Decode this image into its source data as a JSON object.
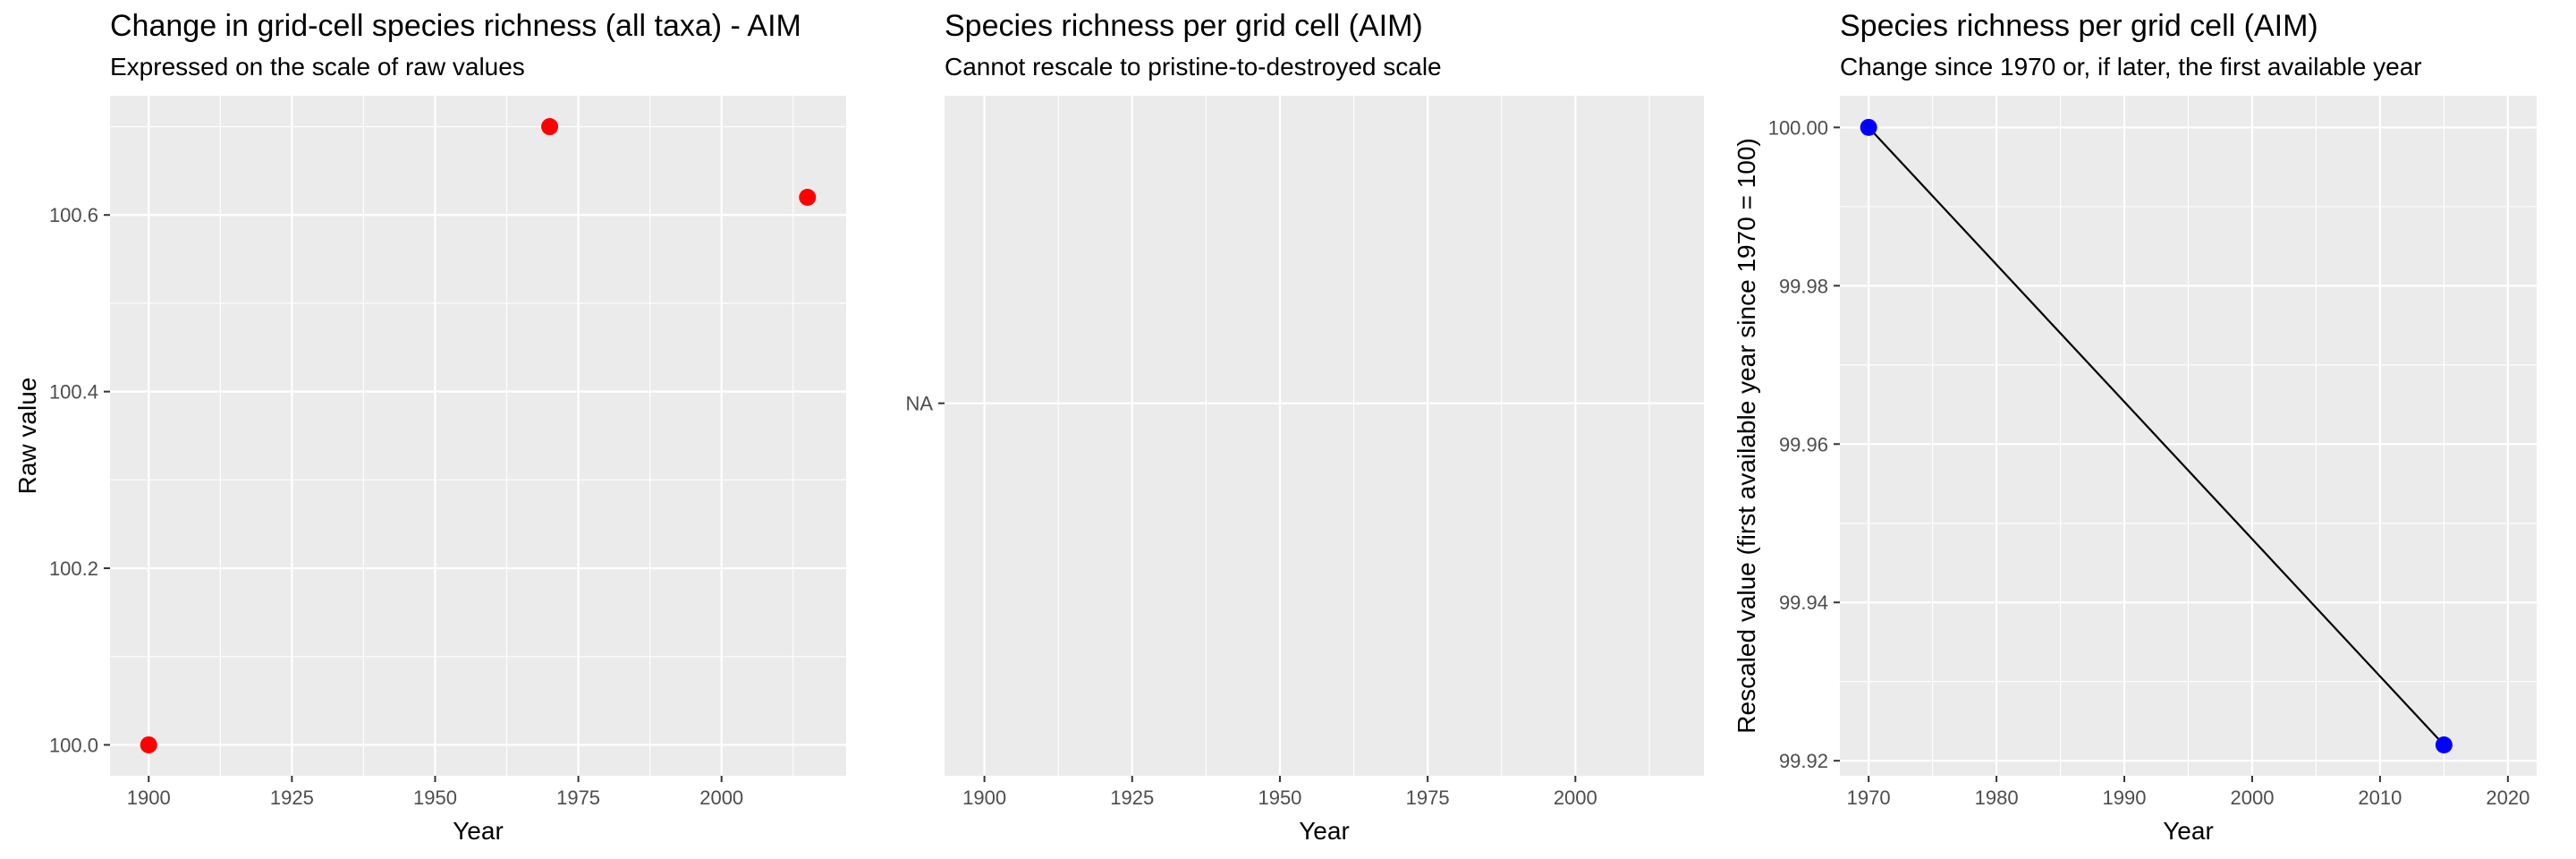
{
  "chart_data": [
    {
      "type": "scatter",
      "title": "Change in grid-cell species richness (all taxa) - AIM",
      "subtitle": "Expressed on the scale of raw values",
      "xlabel": "Year",
      "ylabel": "Raw value",
      "xlim": [
        1893.25,
        2021.75
      ],
      "ylim": [
        99.965,
        100.735
      ],
      "x_ticks": [
        1900,
        1925,
        1950,
        1975,
        2000
      ],
      "y_ticks": [
        100.0,
        100.2,
        100.4,
        100.6
      ],
      "y_tick_labels": [
        "100.0",
        "100.2",
        "100.4",
        "100.6"
      ],
      "grid": true,
      "series": [
        {
          "x": [
            1900,
            1970,
            2015
          ],
          "y": [
            100.0,
            100.7,
            100.62
          ],
          "color": "#ff0000",
          "line": false
        }
      ]
    },
    {
      "type": "scatter",
      "title": "Species richness per grid cell (AIM)",
      "subtitle": "Cannot rescale to pristine-to-destroyed scale",
      "xlabel": "Year",
      "ylabel": "",
      "xlim": [
        1893.25,
        2021.75
      ],
      "x_ticks": [
        1900,
        1925,
        1950,
        1975,
        2000
      ],
      "y_ticks": [
        "NA"
      ],
      "y_tick_labels": [
        "NA"
      ],
      "grid": true,
      "series": []
    },
    {
      "type": "line",
      "title": "Species richness per grid cell (AIM)",
      "subtitle": "Change since 1970 or, if later, the first available year",
      "xlabel": "Year",
      "ylabel": "Rescaled value (first available year since 1970 = 100)",
      "xlim": [
        1967.75,
        2022.25
      ],
      "ylim": [
        99.9181,
        100.004
      ],
      "x_ticks": [
        1970,
        1980,
        1990,
        2000,
        2010,
        2020
      ],
      "y_ticks": [
        99.92,
        99.94,
        99.96,
        99.98,
        100.0
      ],
      "y_tick_labels": [
        "99.92",
        "99.94",
        "99.96",
        "99.98",
        "100.00"
      ],
      "grid": true,
      "series": [
        {
          "x": [
            1970,
            2015
          ],
          "y": [
            100.0,
            99.922
          ],
          "color": "#0000ff",
          "line": true,
          "line_color": "#000000"
        }
      ]
    }
  ]
}
